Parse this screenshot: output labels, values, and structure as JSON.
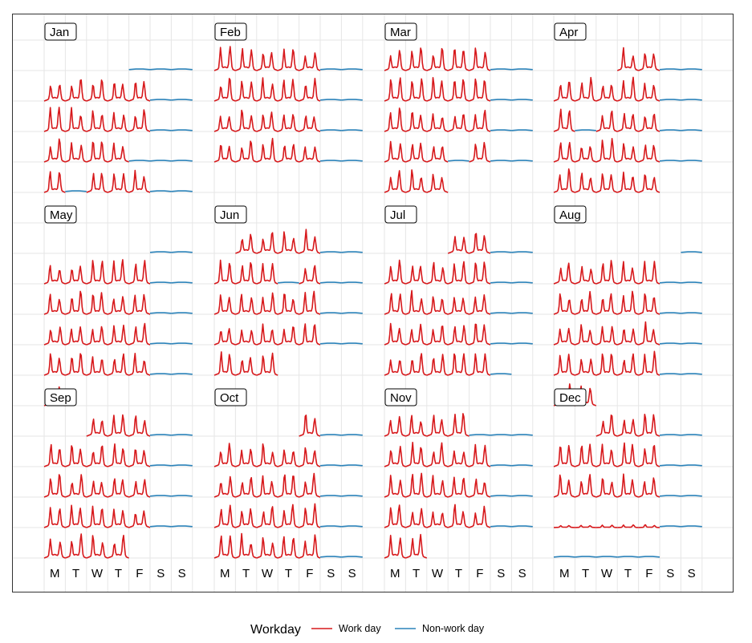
{
  "chart_data": {
    "type": "line",
    "title": "",
    "layout": "calendar",
    "months": [
      "Jan",
      "Feb",
      "Mar",
      "Apr",
      "May",
      "Jun",
      "Jul",
      "Aug",
      "Sep",
      "Oct",
      "Nov",
      "Dec"
    ],
    "weekday_labels": [
      "M",
      "T",
      "W",
      "T",
      "F",
      "S",
      "S"
    ],
    "year_start_weekday": 4,
    "month_first_weekday": [
      4,
      0,
      0,
      3,
      5,
      1,
      3,
      6,
      2,
      4,
      0,
      2
    ],
    "month_days": [
      31,
      28,
      31,
      30,
      31,
      30,
      31,
      31,
      30,
      31,
      30,
      31
    ],
    "peak_pattern": "two daily peaks on work days (morning and evening), flat low line on non-work days",
    "non_work_days": {
      "Jan": [
        1,
        22,
        26
      ],
      "Mar": [
        25
      ],
      "Apr": [
        10,
        13,
        25
      ],
      "Jun": [
        10
      ],
      "Nov": [
        5
      ],
      "Dec": [
        25,
        26,
        27,
        28,
        29,
        30,
        31
      ]
    },
    "reduced_days": {
      "Dec": [
        20,
        21,
        22,
        23,
        24
      ]
    },
    "series": [
      {
        "name": "Work day",
        "color": "#d7191c"
      },
      {
        "name": "Non-work day",
        "color": "#2b83ba"
      }
    ],
    "legend": {
      "title": "Workday",
      "position": "bottom"
    },
    "grid": true
  }
}
